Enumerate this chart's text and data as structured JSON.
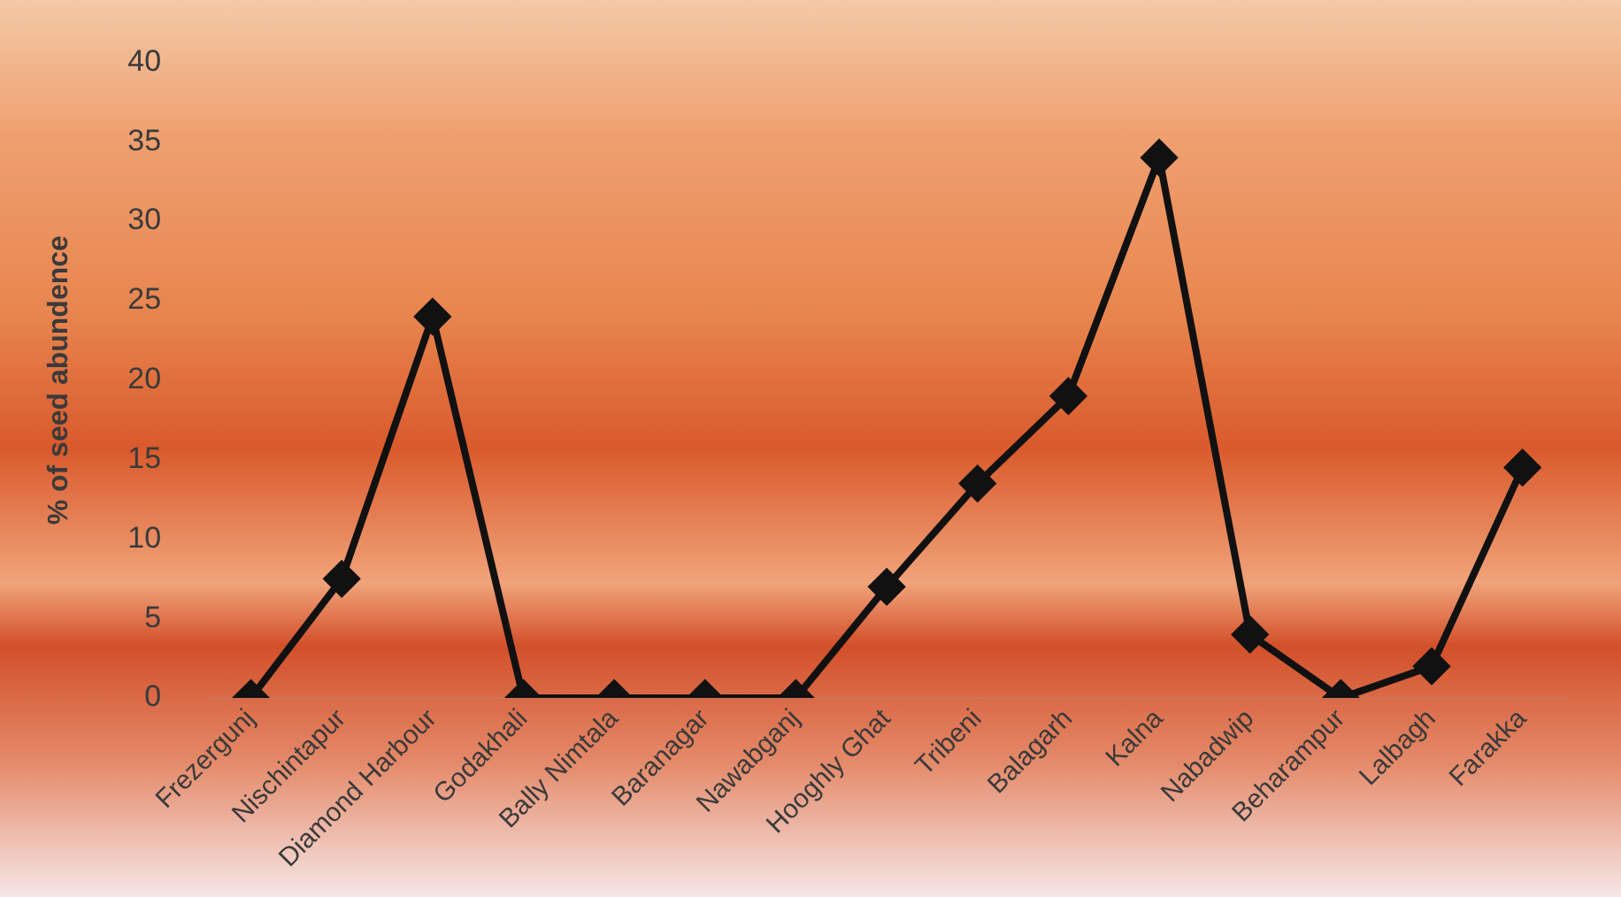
{
  "chart_data": {
    "type": "line",
    "ylabel": "% of seed abundence",
    "categories": [
      "Frezergunj",
      "Nischintapur",
      "Diamond Harbour",
      "Godakhali",
      "Bally Nimtala",
      "Baranagar",
      "Nawabganj",
      "Hooghly Ghat",
      "Tribeni",
      "Balagarh",
      "Kalna",
      "Nabadwip",
      "Beharampur",
      "Lalbagh",
      "Farakka"
    ],
    "series": [
      {
        "color": "#111111",
        "values": [
          0,
          7.5,
          24,
          0,
          0,
          0,
          0,
          7,
          13.5,
          19,
          34,
          4,
          0,
          2,
          14.5
        ]
      }
    ],
    "ylim": [
      0,
      40
    ],
    "yticks": [
      0,
      5,
      10,
      15,
      20,
      25,
      30,
      35,
      40
    ],
    "grid": false,
    "legend": false,
    "marker": "diamond",
    "line_style": "solid"
  }
}
